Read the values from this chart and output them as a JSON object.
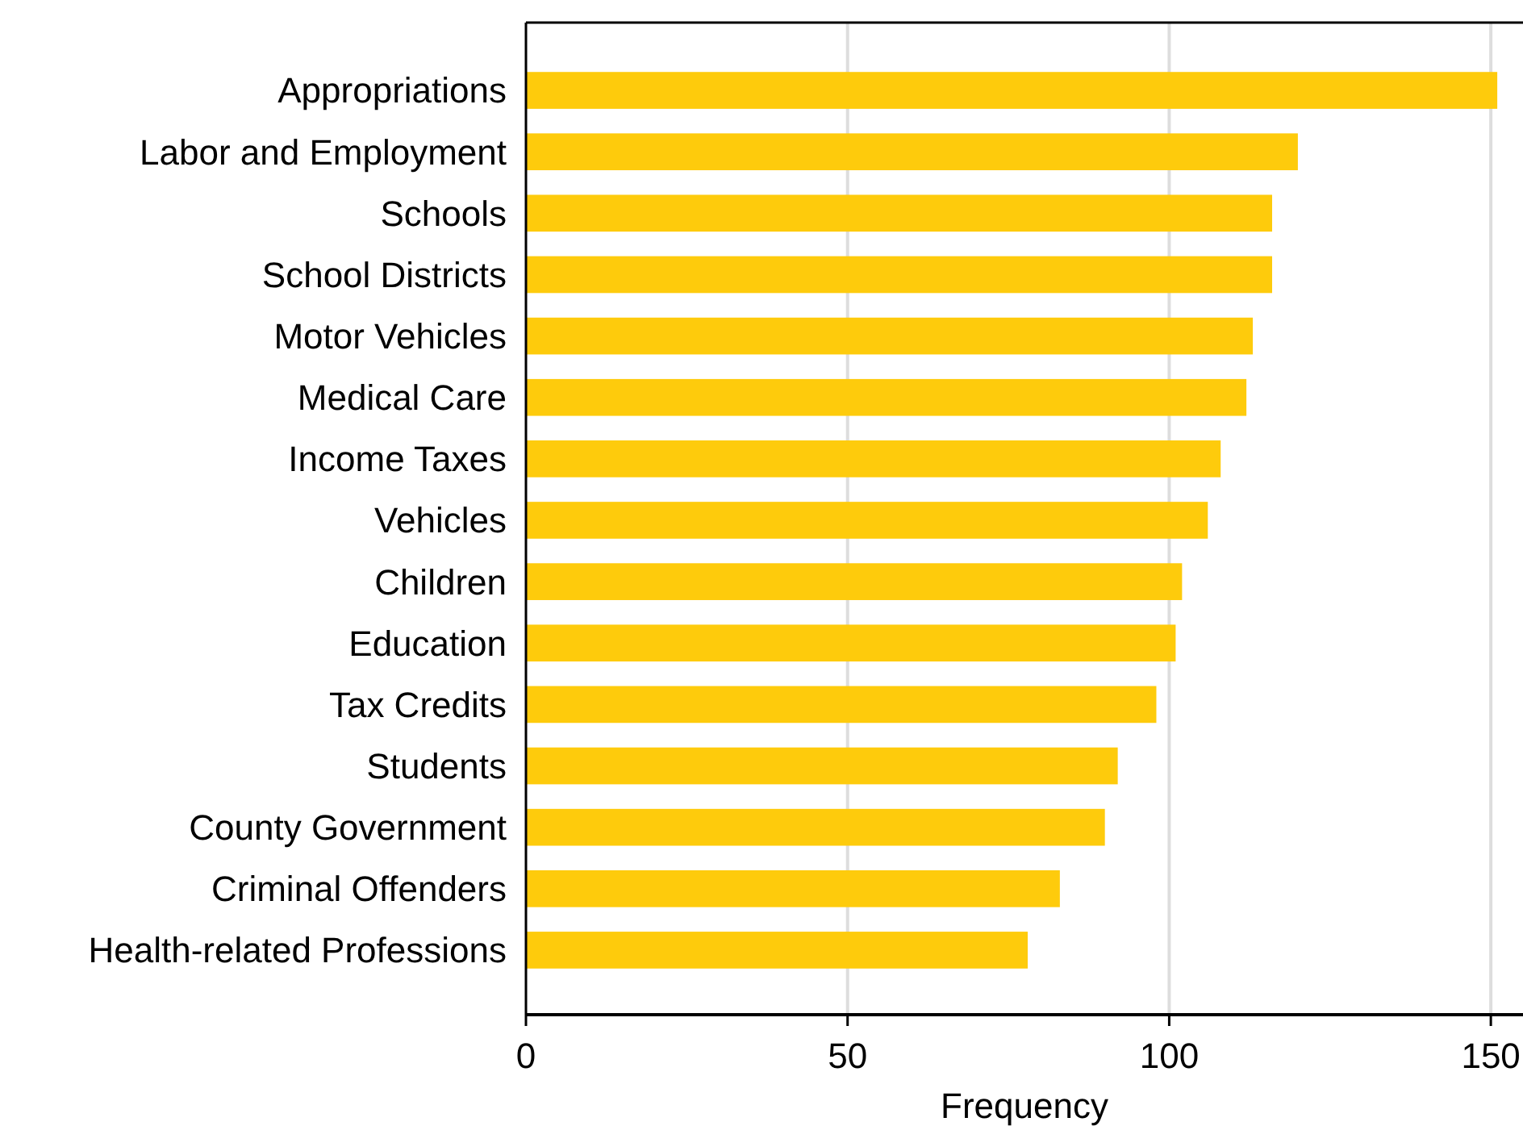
{
  "chart_data": {
    "type": "bar",
    "orientation": "horizontal",
    "xlabel": "Frequency",
    "categories": [
      "Appropriations",
      "Labor and Employment",
      "Schools",
      "School Districts",
      "Motor Vehicles",
      "Medical Care",
      "Income Taxes",
      "Vehicles",
      "Children",
      "Education",
      "Tax Credits",
      "Students",
      "County Government",
      "Criminal Offenders",
      "Health-related Professions"
    ],
    "values": [
      151,
      120,
      116,
      116,
      113,
      112,
      108,
      106,
      102,
      101,
      98,
      92,
      90,
      83,
      78
    ],
    "color": "#fecb0c",
    "xlim": [
      0,
      155
    ],
    "xticks": [
      0,
      50,
      100,
      150
    ],
    "grid": "x"
  }
}
